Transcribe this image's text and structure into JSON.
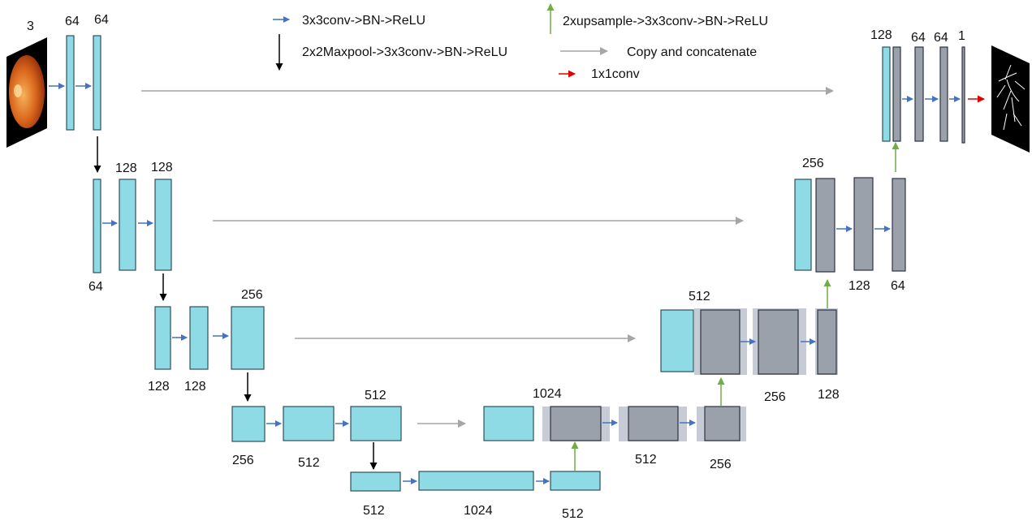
{
  "legend": {
    "conv": "3x3conv->BN->ReLU",
    "pool": "2x2Maxpool->3x3conv->BN->ReLU",
    "upsample": "2xupsample->3x3conv->BN->ReLU",
    "copy": "Copy and concatenate",
    "final": "1x1conv"
  },
  "colors": {
    "conv_arrow": "#4472c4",
    "pool_arrow": "#000000",
    "upsample_arrow": "#70ad47",
    "copy_arrow": "#a6a6a6",
    "final_arrow": "#e00000",
    "encoder_block": "#8fdbe5",
    "decoder_block": "#9aa1ab"
  },
  "images": {
    "input": "fundus-retina-image",
    "output": "vessel-segmentation-mask"
  },
  "labels": {
    "enc1": [
      "3",
      "64",
      "64"
    ],
    "enc2": [
      "128",
      "128",
      "64"
    ],
    "enc3": [
      "256",
      "128",
      "128"
    ],
    "enc4": [
      "512",
      "256",
      "512"
    ],
    "bottleneck": [
      "512",
      "1024",
      "512"
    ],
    "dec4": [
      "1024",
      "512",
      "256"
    ],
    "dec3": [
      "512",
      "256",
      "128"
    ],
    "dec2": [
      "256",
      "128",
      "64"
    ],
    "dec1": [
      "128",
      "64",
      "64",
      "1"
    ]
  }
}
